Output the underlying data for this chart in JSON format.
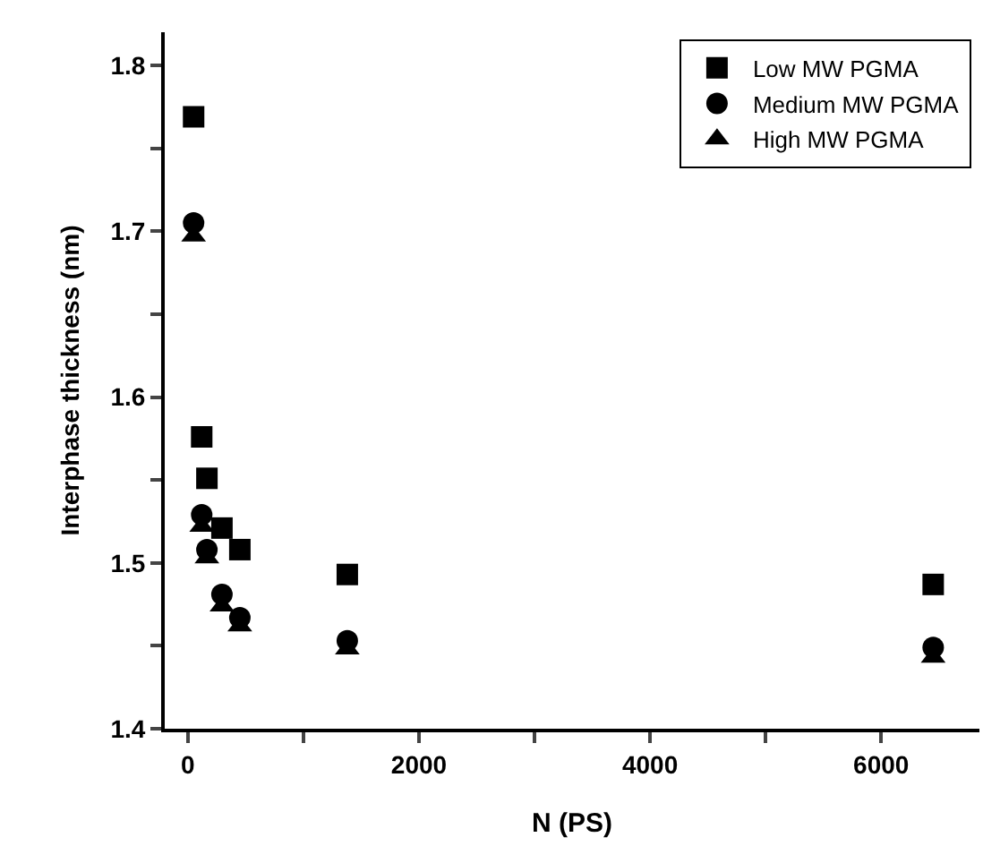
{
  "chart_data": {
    "type": "scatter",
    "xlabel": "N (PS)",
    "ylabel": "Interphase thickness (nm)",
    "x": [
      50,
      120,
      165,
      295,
      450,
      1380,
      6450
    ],
    "series": [
      {
        "name": "Low MW PGMA",
        "color": "#000000",
        "marker": "square",
        "values": [
          1.769,
          1.576,
          1.551,
          1.521,
          1.508,
          1.493,
          1.487
        ]
      },
      {
        "name": "Medium MW PGMA",
        "color": "#000000",
        "marker": "circle",
        "values": [
          1.705,
          1.529,
          1.508,
          1.481,
          1.467,
          1.453,
          1.449
        ]
      },
      {
        "name": "High MW PGMA",
        "color": "#000000",
        "marker": "triangle",
        "values": [
          1.697,
          1.522,
          1.503,
          1.474,
          1.462,
          1.448,
          1.443
        ]
      }
    ],
    "xlim": [
      -200,
      6850
    ],
    "ylim": [
      1.4,
      1.82
    ],
    "xticks": [
      0,
      {
        "value": 1000,
        "label": null
      },
      2000,
      {
        "value": 3000,
        "label": null
      },
      4000,
      {
        "value": 5000,
        "label": null
      },
      6000
    ],
    "yticks": [
      1.4,
      {
        "value": 1.45,
        "label": null
      },
      1.5,
      {
        "value": 1.55,
        "label": null
      },
      1.6,
      {
        "value": 1.65,
        "label": null
      },
      1.7,
      {
        "value": 1.75,
        "label": null
      },
      1.8
    ],
    "grid": false,
    "legend": "top right"
  }
}
